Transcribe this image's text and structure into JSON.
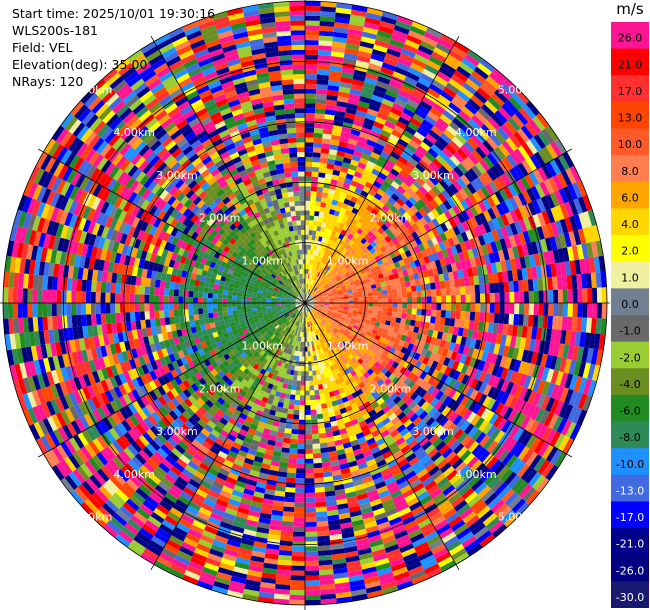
{
  "header": {
    "start_time_label": "Start time: 2025/10/01 19:30:16",
    "instrument": "WLS200s-181",
    "field_label": "Field: VEL",
    "elevation_label": "Elevation(deg): 35.00",
    "nrays_label": "NRays: 120"
  },
  "chart_data": {
    "type": "heatmap",
    "subtype": "radar-ppi",
    "field": "VEL",
    "units": "m/s",
    "n_rays": 120,
    "elevation_deg": 35.0,
    "range_rings_km": [
      1.0,
      2.0,
      3.0,
      4.0,
      5.0
    ],
    "range_ring_labels": [
      "1.00km",
      "2.00km",
      "3.00km",
      "4.00km",
      "5.00km"
    ],
    "azimuth_lines_deg": [
      0,
      30,
      60,
      90,
      120,
      150,
      180,
      210,
      240,
      270,
      300,
      330
    ],
    "max_range_km": 5.0,
    "pattern_description": "Coherent wind near centre: negative velocities (greens) to the west, positive (yellow/orange) to the east; beyond ~2.5 km the field is noisy across the full colour range.",
    "colorbar": {
      "unit_label": "m/s",
      "tick_labels": [
        "26.0",
        "21.0",
        "17.0",
        "13.0",
        "10.0",
        "8.0",
        "6.0",
        "4.0",
        "2.0",
        "1.0",
        "0.0",
        "-1.0",
        "-2.0",
        "-4.0",
        "-6.0",
        "-8.0",
        "-10.0",
        "-13.0",
        "-17.0",
        "-21.0",
        "-26.0",
        "-30.0"
      ],
      "colors": [
        "#ff1493",
        "#ff0000",
        "#ff3030",
        "#ff4500",
        "#ff5a28",
        "#ff7f50",
        "#ffa500",
        "#ffd700",
        "#ffff00",
        "#f0f0a0",
        "#708090",
        "#696969",
        "#9acd32",
        "#6b8e23",
        "#228b22",
        "#2e8b57",
        "#1e90ff",
        "#4169e1",
        "#0000ff",
        "#00008b",
        "#000080",
        "#191970"
      ]
    }
  }
}
